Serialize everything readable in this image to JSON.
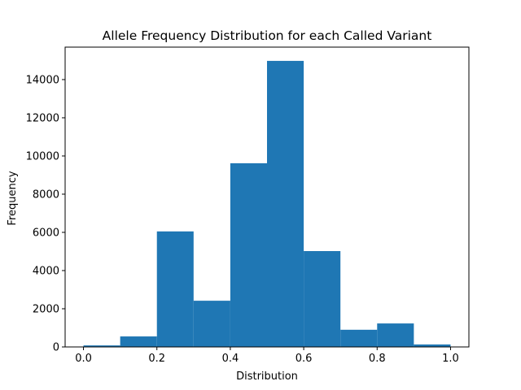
{
  "chart_data": {
    "type": "bar",
    "title": "Allele Frequency Distribution for each Called Variant",
    "xlabel": "Distribution",
    "ylabel": "Frequency",
    "xlim": [
      -0.05,
      1.05
    ],
    "ylim": [
      0,
      15700
    ],
    "x_ticks": [
      0.0,
      0.2,
      0.4,
      0.6,
      0.8,
      1.0
    ],
    "x_tick_labels": [
      "0.0",
      "0.2",
      "0.4",
      "0.6",
      "0.8",
      "1.0"
    ],
    "y_ticks": [
      0,
      2000,
      4000,
      6000,
      8000,
      10000,
      12000,
      14000
    ],
    "y_tick_labels": [
      "0",
      "2000",
      "4000",
      "6000",
      "8000",
      "10000",
      "12000",
      "14000"
    ],
    "bin_edges": [
      0.0,
      0.1,
      0.2,
      0.3,
      0.4,
      0.5,
      0.6,
      0.7,
      0.8,
      0.9,
      1.0
    ],
    "values": [
      80,
      550,
      6050,
      2420,
      9620,
      14980,
      5020,
      900,
      1230,
      130
    ],
    "bar_color": "#1f77b4",
    "grid": false,
    "legend": "none"
  }
}
